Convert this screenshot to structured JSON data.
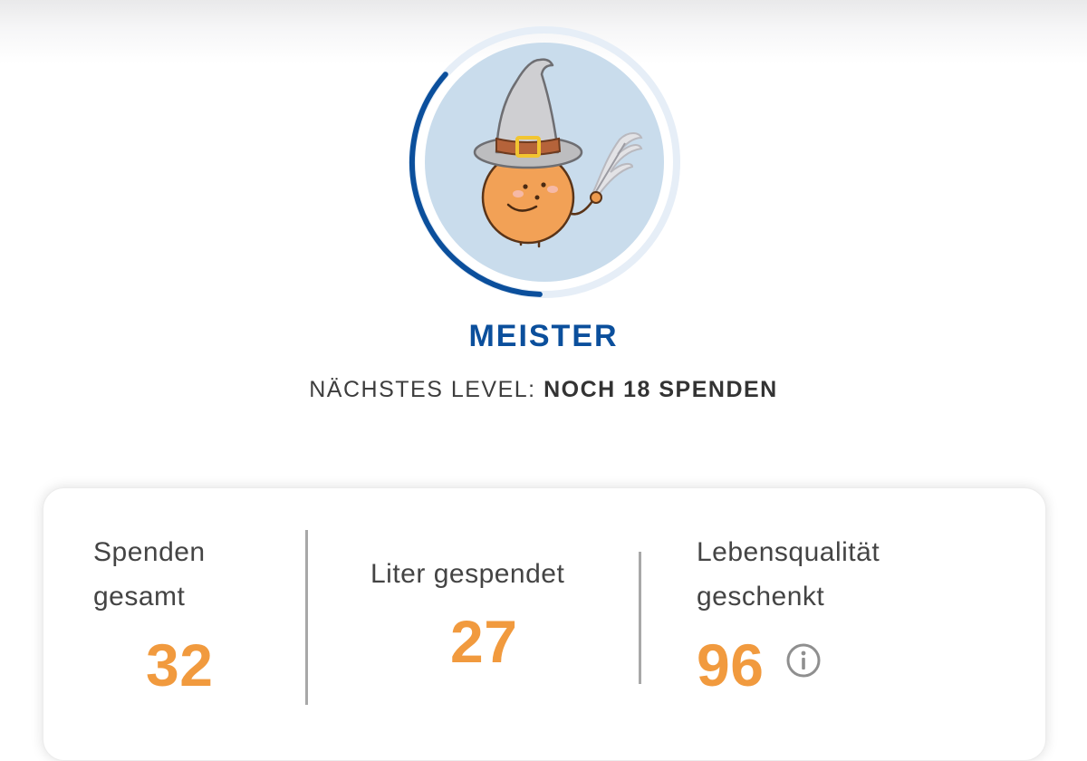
{
  "level": {
    "title": "MEISTER",
    "next_level_prefix": "NÄCHSTES LEVEL: ",
    "next_level_value": "NOCH 18 SPENDEN",
    "progress_fraction": 0.36,
    "avatar_icon": "wizard-orange-mascot-icon"
  },
  "stats": {
    "total_donations": {
      "label_line1": "Spenden",
      "label_line2": "gesamt",
      "value": "32"
    },
    "liters_donated": {
      "label_line1": "Liter gespendet",
      "value": "27"
    },
    "quality_of_life": {
      "label_line1": "Lebensqualität",
      "label_line2": "geschenkt",
      "value": "96",
      "info_icon": "info-icon"
    }
  },
  "colors": {
    "accent_blue": "#0b4f9c",
    "value_orange": "#f19a3e",
    "avatar_bg": "#c9dcec",
    "ring_bg": "#e6eef7"
  }
}
